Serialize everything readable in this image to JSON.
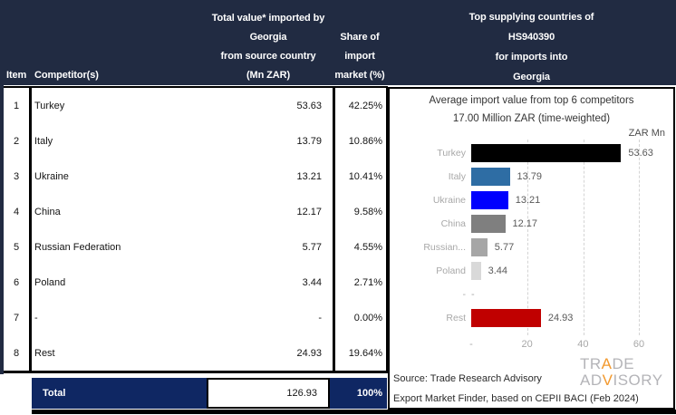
{
  "table": {
    "headers": {
      "item": "Item",
      "competitor": "Competitor(s)",
      "value_lines": [
        "Total value* imported by",
        "Georgia",
        "from source country",
        "(Mn ZAR)"
      ],
      "share_lines": [
        "Share of",
        "import",
        "market (%)"
      ]
    },
    "rows": [
      {
        "item": "1",
        "competitor": "Turkey",
        "value": "53.63",
        "share": "42.25%"
      },
      {
        "item": "2",
        "competitor": "Italy",
        "value": "13.79",
        "share": "10.86%"
      },
      {
        "item": "3",
        "competitor": "Ukraine",
        "value": "13.21",
        "share": "10.41%"
      },
      {
        "item": "4",
        "competitor": "China",
        "value": "12.17",
        "share": "9.58%"
      },
      {
        "item": "5",
        "competitor": "Russian Federation",
        "value": "5.77",
        "share": "4.55%"
      },
      {
        "item": "6",
        "competitor": "Poland",
        "value": "3.44",
        "share": "2.71%"
      },
      {
        "item": "7",
        "competitor": "-",
        "value": "-",
        "share": "0.00%"
      },
      {
        "item": "8",
        "competitor": "Rest",
        "value": "24.93",
        "share": "19.64%"
      }
    ],
    "total": {
      "label": "Total",
      "value": "126.93",
      "share": "100%"
    }
  },
  "right_panel": {
    "header_lines": [
      "Top supplying countries of",
      "HS940390",
      "for imports into",
      "Georgia"
    ],
    "source_line1": "Source: Trade Research Advisory",
    "source_line2": "Export Market Finder, based on CEPII BACI (Feb 2024)",
    "logo": {
      "line1_pre": "TR",
      "line1_accent": "A",
      "line1_post": "DE",
      "line2_pre": "AD",
      "line2_accent": "V",
      "line2_post": "ISORY"
    }
  },
  "chart_data": {
    "type": "bar",
    "orientation": "horizontal",
    "title": "Average import value from top 6 competitors",
    "subtitle": "17.00 Million ZAR (time-weighted)",
    "unit_label": "ZAR Mn",
    "categories": [
      "Turkey",
      "Italy",
      "Ukraine",
      "China",
      "Russian...",
      "Poland",
      "-",
      "Rest"
    ],
    "values": [
      53.63,
      13.79,
      13.21,
      12.17,
      5.77,
      3.44,
      null,
      24.93
    ],
    "value_labels": [
      "53.63",
      "13.79",
      "13.21",
      "12.17",
      "5.77",
      "3.44",
      "-",
      "24.93"
    ],
    "bar_colors": [
      "#000000",
      "#2e6da4",
      "#0000fe",
      "#7f7f7f",
      "#a6a6a6",
      "#d9d9d9",
      null,
      "#c00000"
    ],
    "xlim": [
      0,
      60
    ],
    "xticks": [
      "-",
      "20",
      "40",
      "60"
    ],
    "grid": "dashed-vertical",
    "legend": "none"
  },
  "colors": {
    "header_navy": "#212b42",
    "total_navy": "#0f2763",
    "border_black": "#000000",
    "rest_red": "#c00000",
    "ukraine_blue": "#0000fe",
    "italy_blue": "#2e6da4",
    "logo_gray": "#b4b4b8",
    "logo_orange": "#f2992e"
  }
}
